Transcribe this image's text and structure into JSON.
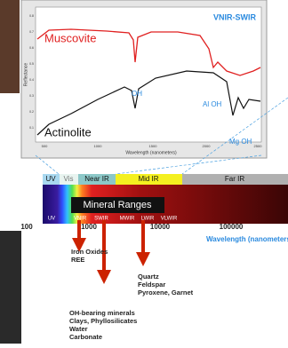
{
  "spectrum_chart": {
    "title": "VNIR-SWIR",
    "y_axis_label": "Reflectance",
    "x_axis_label": "Wavelength (nanometers)",
    "yticks": [
      "0.8",
      "0.7",
      "0.6",
      "0.5",
      "0.4",
      "0.3",
      "0.2",
      "0.1"
    ],
    "xticks": [
      "500",
      "1000",
      "1500",
      "2000",
      "2500"
    ],
    "curves": [
      "Muscovite",
      "Actinolite"
    ],
    "annotations": [
      "OH",
      "Al OH",
      "Mg OH"
    ]
  },
  "em_band": {
    "regions": [
      "UV",
      "Vis",
      "Near IR",
      "Mid IR",
      "Far IR"
    ],
    "subregions": [
      "UV",
      "VNIR",
      "SWIR",
      "MWIR",
      "LWIR",
      "VLWIR"
    ],
    "label": "Mineral Ranges",
    "axis_ticks": [
      "100",
      "1000",
      "10000",
      "100000"
    ],
    "axis_label": "Wavelength (nanometers"
  },
  "mineral_groups": [
    [
      "Iron Oxides",
      "REE"
    ],
    [
      "Quartz",
      "Feldspar",
      "Pyroxene, Garnet"
    ],
    [
      "OH-bearing minerals",
      "Clays, Phyllosilicates",
      "Water",
      "Carbonate"
    ]
  ]
}
